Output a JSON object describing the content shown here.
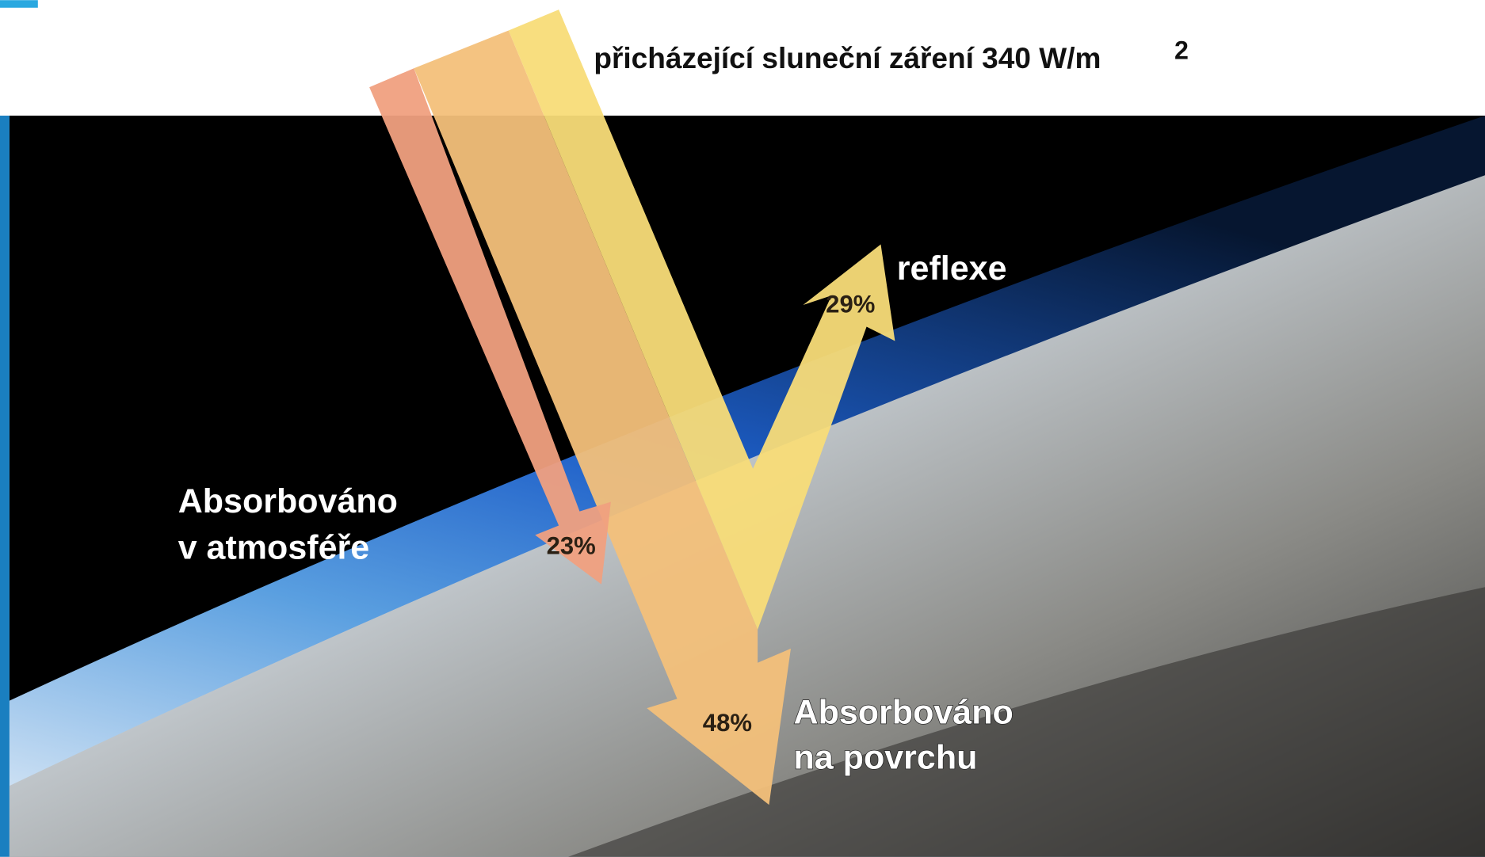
{
  "header": {
    "title": "přicházející sluneční záření 340 W/m",
    "superscript": "2"
  },
  "flows": [
    {
      "label": "reflexe",
      "percent": "29%"
    },
    {
      "label_lines": [
        "Absorbováno",
        "v atmosféře"
      ],
      "percent": "23%"
    },
    {
      "label_lines": [
        "Absorbováno",
        "na povrchu"
      ],
      "percent": "48%"
    }
  ]
}
